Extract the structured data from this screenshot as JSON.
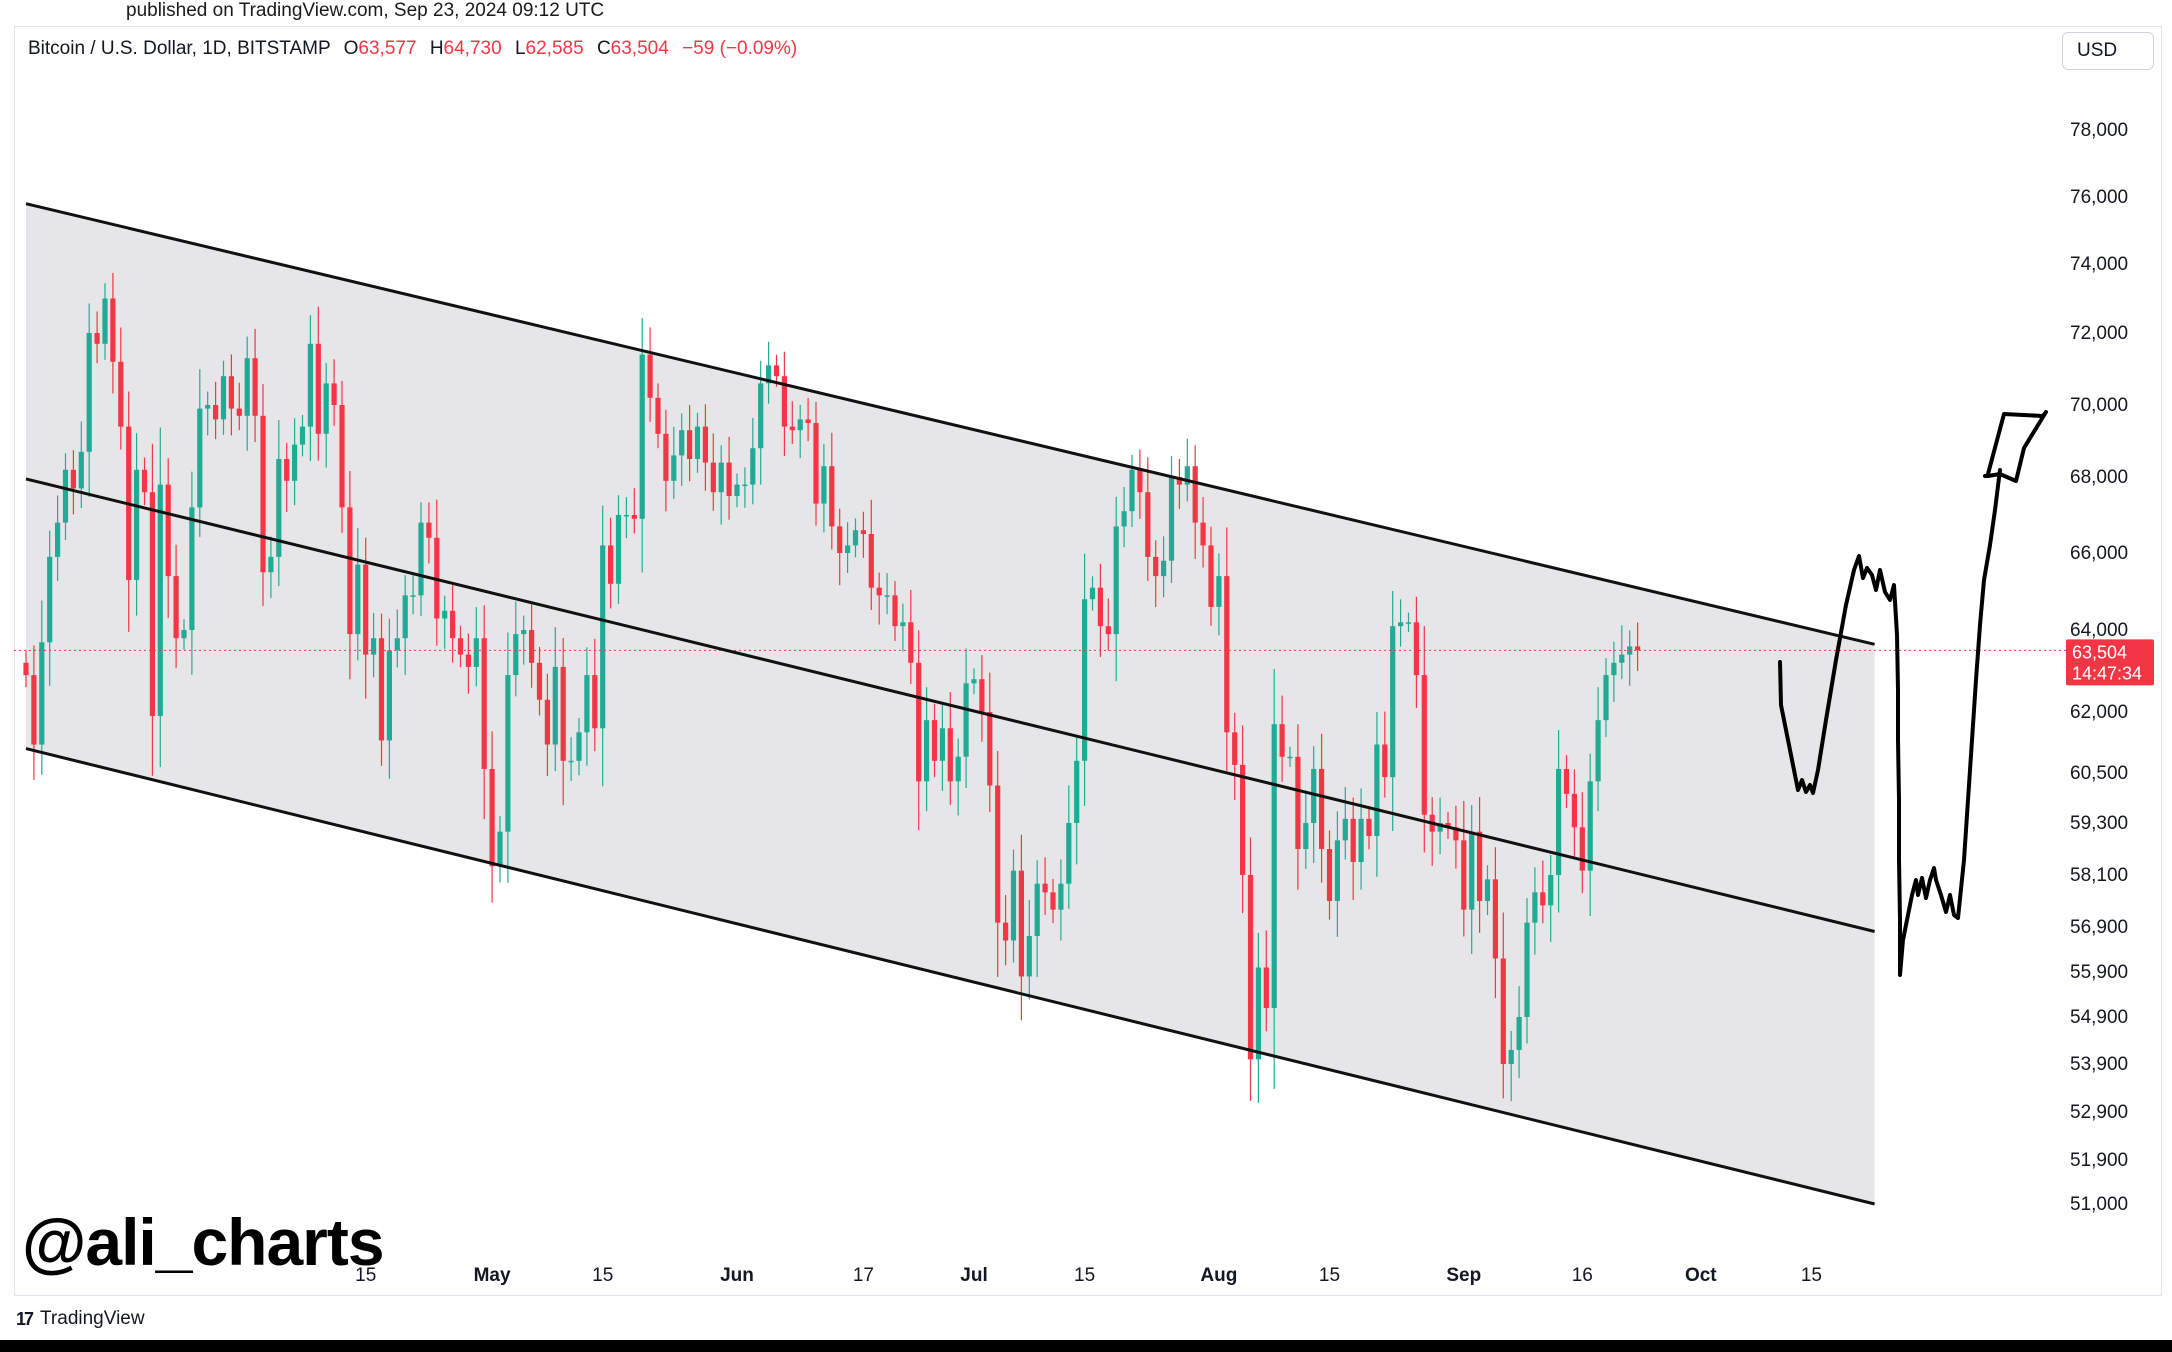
{
  "header": {
    "published": "published on TradingView.com, Sep 23, 2024 09:12 UTC"
  },
  "legend": {
    "symbol": "Bitcoin / U.S. Dollar, 1D, BITSTAMP",
    "o_label": "O",
    "o_value": "63,577",
    "h_label": "H",
    "h_value": "64,730",
    "l_label": "L",
    "l_value": "62,585",
    "c_label": "C",
    "c_value": "63,504",
    "change": "−59 (−0.09%)"
  },
  "currency_button": "USD",
  "price_tag": {
    "price": "63,504",
    "countdown": "14:47:34"
  },
  "watermark": "@ali_charts",
  "footer_brand": "TradingView",
  "colors": {
    "up": "#22ab94",
    "down": "#f23645",
    "channel_fill": "#e6e6e9",
    "channel_line": "#111111"
  },
  "chart_data": {
    "type": "candlestick",
    "ticker": "BTCUSD",
    "timeframe": "1D",
    "y_ticks": [
      78000,
      76000,
      74000,
      72000,
      70000,
      68000,
      66000,
      64000,
      62000,
      60500,
      59300,
      58100,
      56900,
      55900,
      54900,
      53900,
      52900,
      51900,
      51000
    ],
    "x_ticks": [
      {
        "label": "15",
        "date": "2024-04-15",
        "bold": false
      },
      {
        "label": "May",
        "date": "2024-05-01",
        "bold": true
      },
      {
        "label": "15",
        "date": "2024-05-15",
        "bold": false
      },
      {
        "label": "Jun",
        "date": "2024-06-01",
        "bold": true
      },
      {
        "label": "17",
        "date": "2024-06-17",
        "bold": false
      },
      {
        "label": "Jul",
        "date": "2024-07-01",
        "bold": true
      },
      {
        "label": "15",
        "date": "2024-07-15",
        "bold": false
      },
      {
        "label": "Aug",
        "date": "2024-08-01",
        "bold": true
      },
      {
        "label": "15",
        "date": "2024-08-15",
        "bold": false
      },
      {
        "label": "Sep",
        "date": "2024-09-01",
        "bold": true
      },
      {
        "label": "16",
        "date": "2024-09-16",
        "bold": false
      },
      {
        "label": "Oct",
        "date": "2024-10-01",
        "bold": true
      },
      {
        "label": "15",
        "date": "2024-10-15",
        "bold": false
      }
    ],
    "last_close": 63504,
    "channel": {
      "upper": [
        {
          "date": "2024-03-03",
          "price": 75800
        },
        {
          "date": "2024-10-23",
          "price": 63650
        }
      ],
      "middle": [
        {
          "date": "2024-03-03",
          "price": 67950
        },
        {
          "date": "2024-10-23",
          "price": 56800
        }
      ],
      "lower": [
        {
          "date": "2024-03-03",
          "price": 61100
        },
        {
          "date": "2024-10-23",
          "price": 51000
        }
      ]
    },
    "closes": [
      {
        "date": "2024-03-03",
        "close": 62900
      },
      {
        "date": "2024-03-04",
        "close": 61200
      },
      {
        "date": "2024-03-05",
        "close": 63700
      },
      {
        "date": "2024-03-06",
        "close": 65900
      },
      {
        "date": "2024-03-07",
        "close": 66800
      },
      {
        "date": "2024-03-08",
        "close": 68200
      },
      {
        "date": "2024-03-09",
        "close": 67700
      },
      {
        "date": "2024-03-10",
        "close": 68700
      },
      {
        "date": "2024-03-11",
        "close": 72000
      },
      {
        "date": "2024-03-12",
        "close": 71700
      },
      {
        "date": "2024-03-13",
        "close": 73000
      },
      {
        "date": "2024-03-14",
        "close": 71200
      },
      {
        "date": "2024-03-15",
        "close": 69400
      },
      {
        "date": "2024-03-16",
        "close": 65300
      },
      {
        "date": "2024-03-17",
        "close": 68200
      },
      {
        "date": "2024-03-18",
        "close": 67600
      },
      {
        "date": "2024-03-19",
        "close": 61900
      },
      {
        "date": "2024-03-20",
        "close": 67800
      },
      {
        "date": "2024-03-21",
        "close": 65400
      },
      {
        "date": "2024-03-22",
        "close": 63800
      },
      {
        "date": "2024-03-23",
        "close": 64000
      },
      {
        "date": "2024-03-24",
        "close": 67200
      },
      {
        "date": "2024-03-25",
        "close": 69900
      },
      {
        "date": "2024-03-26",
        "close": 70000
      },
      {
        "date": "2024-03-27",
        "close": 69600
      },
      {
        "date": "2024-03-28",
        "close": 70800
      },
      {
        "date": "2024-03-29",
        "close": 69900
      },
      {
        "date": "2024-03-30",
        "close": 69700
      },
      {
        "date": "2024-03-31",
        "close": 71300
      },
      {
        "date": "2024-04-01",
        "close": 69700
      },
      {
        "date": "2024-04-02",
        "close": 65500
      },
      {
        "date": "2024-04-03",
        "close": 65900
      },
      {
        "date": "2024-04-04",
        "close": 68500
      },
      {
        "date": "2024-04-05",
        "close": 67900
      },
      {
        "date": "2024-04-06",
        "close": 68900
      },
      {
        "date": "2024-04-07",
        "close": 69400
      },
      {
        "date": "2024-04-08",
        "close": 71700
      },
      {
        "date": "2024-04-09",
        "close": 69200
      },
      {
        "date": "2024-04-10",
        "close": 70600
      },
      {
        "date": "2024-04-11",
        "close": 70000
      },
      {
        "date": "2024-04-12",
        "close": 67200
      },
      {
        "date": "2024-04-13",
        "close": 63900
      },
      {
        "date": "2024-04-14",
        "close": 65700
      },
      {
        "date": "2024-04-15",
        "close": 63400
      },
      {
        "date": "2024-04-16",
        "close": 63800
      },
      {
        "date": "2024-04-17",
        "close": 61300
      },
      {
        "date": "2024-04-18",
        "close": 63500
      },
      {
        "date": "2024-04-19",
        "close": 63800
      },
      {
        "date": "2024-04-20",
        "close": 64900
      },
      {
        "date": "2024-04-21",
        "close": 64900
      },
      {
        "date": "2024-04-22",
        "close": 66800
      },
      {
        "date": "2024-04-23",
        "close": 66400
      },
      {
        "date": "2024-04-24",
        "close": 64300
      },
      {
        "date": "2024-04-25",
        "close": 64500
      },
      {
        "date": "2024-04-26",
        "close": 63800
      },
      {
        "date": "2024-04-27",
        "close": 63400
      },
      {
        "date": "2024-04-28",
        "close": 63100
      },
      {
        "date": "2024-04-29",
        "close": 63800
      },
      {
        "date": "2024-04-30",
        "close": 60600
      },
      {
        "date": "2024-05-01",
        "close": 58300
      },
      {
        "date": "2024-05-02",
        "close": 59100
      },
      {
        "date": "2024-05-03",
        "close": 62900
      },
      {
        "date": "2024-05-04",
        "close": 63900
      },
      {
        "date": "2024-05-05",
        "close": 64000
      },
      {
        "date": "2024-05-06",
        "close": 63200
      },
      {
        "date": "2024-05-07",
        "close": 62300
      },
      {
        "date": "2024-05-08",
        "close": 61200
      },
      {
        "date": "2024-05-09",
        "close": 63100
      },
      {
        "date": "2024-05-10",
        "close": 60800
      },
      {
        "date": "2024-05-11",
        "close": 60800
      },
      {
        "date": "2024-05-12",
        "close": 61500
      },
      {
        "date": "2024-05-13",
        "close": 62900
      },
      {
        "date": "2024-05-14",
        "close": 61600
      },
      {
        "date": "2024-05-15",
        "close": 66200
      },
      {
        "date": "2024-05-16",
        "close": 65200
      },
      {
        "date": "2024-05-17",
        "close": 67000
      },
      {
        "date": "2024-05-18",
        "close": 67000
      },
      {
        "date": "2024-05-19",
        "close": 66900
      },
      {
        "date": "2024-05-20",
        "close": 71400
      },
      {
        "date": "2024-05-21",
        "close": 70200
      },
      {
        "date": "2024-05-22",
        "close": 69200
      },
      {
        "date": "2024-05-23",
        "close": 67900
      },
      {
        "date": "2024-05-24",
        "close": 68600
      },
      {
        "date": "2024-05-25",
        "close": 69300
      },
      {
        "date": "2024-05-26",
        "close": 68500
      },
      {
        "date": "2024-05-27",
        "close": 69400
      },
      {
        "date": "2024-05-28",
        "close": 68400
      },
      {
        "date": "2024-05-29",
        "close": 67600
      },
      {
        "date": "2024-05-30",
        "close": 68400
      },
      {
        "date": "2024-05-31",
        "close": 67500
      },
      {
        "date": "2024-06-01",
        "close": 67800
      },
      {
        "date": "2024-06-02",
        "close": 67800
      },
      {
        "date": "2024-06-03",
        "close": 68800
      },
      {
        "date": "2024-06-04",
        "close": 70600
      },
      {
        "date": "2024-06-05",
        "close": 71100
      },
      {
        "date": "2024-06-06",
        "close": 70800
      },
      {
        "date": "2024-06-07",
        "close": 69400
      },
      {
        "date": "2024-06-08",
        "close": 69300
      },
      {
        "date": "2024-06-09",
        "close": 69600
      },
      {
        "date": "2024-06-10",
        "close": 69500
      },
      {
        "date": "2024-06-11",
        "close": 67300
      },
      {
        "date": "2024-06-12",
        "close": 68300
      },
      {
        "date": "2024-06-13",
        "close": 66700
      },
      {
        "date": "2024-06-14",
        "close": 66000
      },
      {
        "date": "2024-06-15",
        "close": 66200
      },
      {
        "date": "2024-06-16",
        "close": 66600
      },
      {
        "date": "2024-06-17",
        "close": 66500
      },
      {
        "date": "2024-06-18",
        "close": 65100
      },
      {
        "date": "2024-06-19",
        "close": 64900
      },
      {
        "date": "2024-06-20",
        "close": 64900
      },
      {
        "date": "2024-06-21",
        "close": 64100
      },
      {
        "date": "2024-06-22",
        "close": 64200
      },
      {
        "date": "2024-06-23",
        "close": 63200
      },
      {
        "date": "2024-06-24",
        "close": 60300
      },
      {
        "date": "2024-06-25",
        "close": 61800
      },
      {
        "date": "2024-06-26",
        "close": 60800
      },
      {
        "date": "2024-06-27",
        "close": 61600
      },
      {
        "date": "2024-06-28",
        "close": 60300
      },
      {
        "date": "2024-06-29",
        "close": 60900
      },
      {
        "date": "2024-06-30",
        "close": 62700
      },
      {
        "date": "2024-07-01",
        "close": 62800
      },
      {
        "date": "2024-07-02",
        "close": 62000
      },
      {
        "date": "2024-07-03",
        "close": 60200
      },
      {
        "date": "2024-07-04",
        "close": 57000
      },
      {
        "date": "2024-07-05",
        "close": 56600
      },
      {
        "date": "2024-07-06",
        "close": 58200
      },
      {
        "date": "2024-07-07",
        "close": 55800
      },
      {
        "date": "2024-07-08",
        "close": 56700
      },
      {
        "date": "2024-07-09",
        "close": 57900
      },
      {
        "date": "2024-07-10",
        "close": 57700
      },
      {
        "date": "2024-07-11",
        "close": 57300
      },
      {
        "date": "2024-07-12",
        "close": 57900
      },
      {
        "date": "2024-07-13",
        "close": 59300
      },
      {
        "date": "2024-07-14",
        "close": 60800
      },
      {
        "date": "2024-07-15",
        "close": 64800
      },
      {
        "date": "2024-07-16",
        "close": 65100
      },
      {
        "date": "2024-07-17",
        "close": 64100
      },
      {
        "date": "2024-07-18",
        "close": 63900
      },
      {
        "date": "2024-07-19",
        "close": 66700
      },
      {
        "date": "2024-07-20",
        "close": 67100
      },
      {
        "date": "2024-07-21",
        "close": 68200
      },
      {
        "date": "2024-07-22",
        "close": 67600
      },
      {
        "date": "2024-07-23",
        "close": 65900
      },
      {
        "date": "2024-07-24",
        "close": 65400
      },
      {
        "date": "2024-07-25",
        "close": 65800
      },
      {
        "date": "2024-07-26",
        "close": 68000
      },
      {
        "date": "2024-07-27",
        "close": 67800
      },
      {
        "date": "2024-07-28",
        "close": 68300
      },
      {
        "date": "2024-07-29",
        "close": 66800
      },
      {
        "date": "2024-07-30",
        "close": 66200
      },
      {
        "date": "2024-07-31",
        "close": 64600
      },
      {
        "date": "2024-08-01",
        "close": 65400
      },
      {
        "date": "2024-08-02",
        "close": 61500
      },
      {
        "date": "2024-08-03",
        "close": 60700
      },
      {
        "date": "2024-08-04",
        "close": 58100
      },
      {
        "date": "2024-08-05",
        "close": 54000
      },
      {
        "date": "2024-08-06",
        "close": 56000
      },
      {
        "date": "2024-08-07",
        "close": 55100
      },
      {
        "date": "2024-08-08",
        "close": 61700
      },
      {
        "date": "2024-08-09",
        "close": 60900
      },
      {
        "date": "2024-08-10",
        "close": 60900
      },
      {
        "date": "2024-08-11",
        "close": 58700
      },
      {
        "date": "2024-08-12",
        "close": 59300
      },
      {
        "date": "2024-08-13",
        "close": 60600
      },
      {
        "date": "2024-08-14",
        "close": 58700
      },
      {
        "date": "2024-08-15",
        "close": 57500
      },
      {
        "date": "2024-08-16",
        "close": 58900
      },
      {
        "date": "2024-08-17",
        "close": 59400
      },
      {
        "date": "2024-08-18",
        "close": 58400
      },
      {
        "date": "2024-08-19",
        "close": 59400
      },
      {
        "date": "2024-08-20",
        "close": 59000
      },
      {
        "date": "2024-08-21",
        "close": 61200
      },
      {
        "date": "2024-08-22",
        "close": 60400
      },
      {
        "date": "2024-08-23",
        "close": 64100
      },
      {
        "date": "2024-08-24",
        "close": 64200
      },
      {
        "date": "2024-08-25",
        "close": 64200
      },
      {
        "date": "2024-08-26",
        "close": 62900
      },
      {
        "date": "2024-08-27",
        "close": 59500
      },
      {
        "date": "2024-08-28",
        "close": 59100
      },
      {
        "date": "2024-08-29",
        "close": 59300
      },
      {
        "date": "2024-08-30",
        "close": 59200
      },
      {
        "date": "2024-08-31",
        "close": 58900
      },
      {
        "date": "2024-09-01",
        "close": 57300
      },
      {
        "date": "2024-09-02",
        "close": 59100
      },
      {
        "date": "2024-09-03",
        "close": 57500
      },
      {
        "date": "2024-09-04",
        "close": 58000
      },
      {
        "date": "2024-09-05",
        "close": 56200
      },
      {
        "date": "2024-09-06",
        "close": 53900
      },
      {
        "date": "2024-09-07",
        "close": 54200
      },
      {
        "date": "2024-09-08",
        "close": 54900
      },
      {
        "date": "2024-09-09",
        "close": 57000
      },
      {
        "date": "2024-09-10",
        "close": 57700
      },
      {
        "date": "2024-09-11",
        "close": 57400
      },
      {
        "date": "2024-09-12",
        "close": 58100
      },
      {
        "date": "2024-09-13",
        "close": 60600
      },
      {
        "date": "2024-09-14",
        "close": 60000
      },
      {
        "date": "2024-09-15",
        "close": 59200
      },
      {
        "date": "2024-09-16",
        "close": 58200
      },
      {
        "date": "2024-09-17",
        "close": 60300
      },
      {
        "date": "2024-09-18",
        "close": 61800
      },
      {
        "date": "2024-09-19",
        "close": 62900
      },
      {
        "date": "2024-09-20",
        "close": 63200
      },
      {
        "date": "2024-09-21",
        "close": 63400
      },
      {
        "date": "2024-09-22",
        "close": 63600
      },
      {
        "date": "2024-09-23",
        "close": 63504
      }
    ]
  }
}
